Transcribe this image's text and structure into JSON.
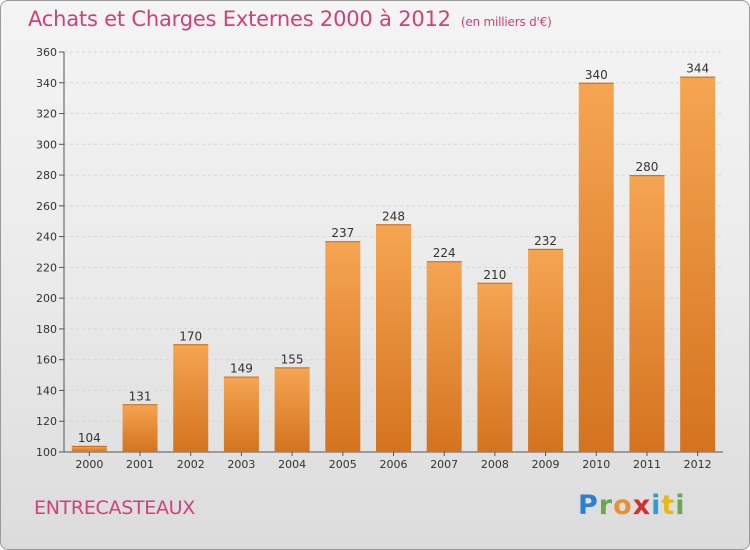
{
  "header": {
    "title": "Achats et Charges Externes 2000 à 2012",
    "subtitle": "(en milliers d'€)"
  },
  "footer": {
    "commune": "ENTRECASTEAUX",
    "logo_letters": [
      {
        "char": "P",
        "color": "#2f7fd0"
      },
      {
        "char": "r",
        "color": "#6aa84f"
      },
      {
        "char": "o",
        "color": "#e69138"
      },
      {
        "char": "x",
        "color": "#cc3333"
      },
      {
        "char": "i",
        "color": "#2f9fd0"
      },
      {
        "char": "t",
        "color": "#e6b820"
      },
      {
        "char": "i",
        "color": "#6aa84f"
      }
    ]
  },
  "colors": {
    "bar_light": "#f6a552",
    "bar_dark": "#d4731f",
    "title": "#d0407a"
  },
  "chart_data": {
    "type": "bar",
    "categories": [
      "2000",
      "2001",
      "2002",
      "2003",
      "2004",
      "2005",
      "2006",
      "2007",
      "2008",
      "2009",
      "2010",
      "2011",
      "2012"
    ],
    "values": [
      104,
      131,
      170,
      149,
      155,
      237,
      248,
      224,
      210,
      232,
      340,
      280,
      344
    ],
    "ylim": [
      100,
      360
    ],
    "yticks": [
      100,
      120,
      140,
      160,
      180,
      200,
      220,
      240,
      260,
      280,
      300,
      320,
      340,
      360
    ],
    "grid": true
  }
}
